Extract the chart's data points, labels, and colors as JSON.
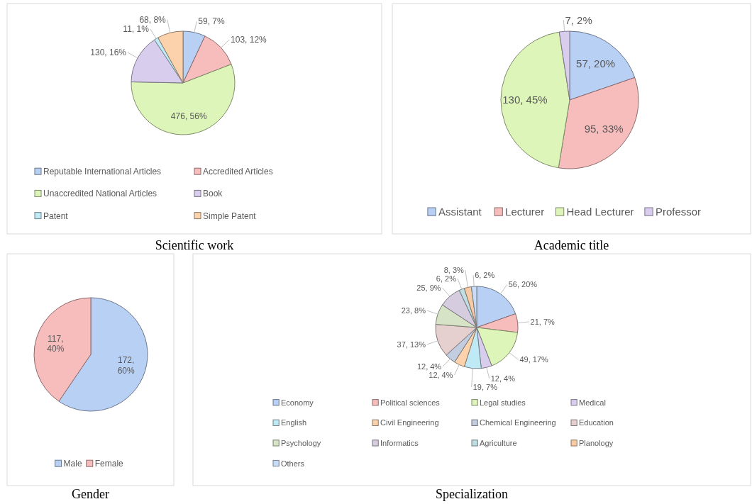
{
  "chart_data": [
    {
      "type": "pie",
      "title": "Scientific work",
      "categories": [
        "Reputable International Articles",
        "Accredited Articles",
        "Unaccredited National Articles",
        "Book",
        "Patent",
        "Simple Patent"
      ],
      "values": [
        59,
        103,
        476,
        130,
        11,
        68
      ],
      "colors": [
        "#b9d0f5",
        "#f7bcbc",
        "#ddf5b8",
        "#d9cdee",
        "#bfe9f5",
        "#fcd2ad"
      ],
      "value_labels": [
        "59, 7%",
        "103, 12%",
        "476, 56%",
        "130, 16%",
        "11, 1%",
        "68, 8%"
      ],
      "legend": "bottom"
    },
    {
      "type": "pie",
      "title": "Academic title",
      "categories": [
        "Assistant",
        "Lecturer",
        "Head Lecturer",
        "Professor"
      ],
      "values": [
        57,
        95,
        130,
        7
      ],
      "colors": [
        "#b9d0f5",
        "#f7bcbc",
        "#ddf5b8",
        "#d9cdee"
      ],
      "value_labels": [
        "57, 20%",
        "95, 33%",
        "130, 45%",
        "7, 2%"
      ],
      "legend": "bottom"
    },
    {
      "type": "pie",
      "title": "Gender",
      "categories": [
        "Male",
        "Female"
      ],
      "values": [
        172,
        117
      ],
      "colors": [
        "#b9d0f5",
        "#f7bcbc"
      ],
      "value_labels": [
        "172, 60%",
        "117, 40%"
      ],
      "legend": "bottom"
    },
    {
      "type": "pie",
      "title": "Specialization",
      "categories": [
        "Economy",
        "Political sciences",
        "Legal studies",
        "Medical",
        "English",
        "Civil Engineering",
        "Chemical Engineering",
        "Education",
        "Psychology",
        "Informatics",
        "Agriculture",
        "Planology",
        "Others"
      ],
      "values": [
        56,
        21,
        49,
        12,
        19,
        12,
        12,
        37,
        23,
        25,
        6,
        8,
        6
      ],
      "colors": [
        "#b9d0f5",
        "#f7bcbc",
        "#ddf5b8",
        "#d9cdee",
        "#bfe9f5",
        "#fcd2ad",
        "#c3cde0",
        "#e6cfcf",
        "#d6e3c6",
        "#d6cce0",
        "#bfdde2",
        "#f7cba6",
        "#c8dcf7"
      ],
      "value_labels": [
        "56, 20%",
        "21, 7%",
        "49, 17%",
        "12, 4%",
        "19, 7%",
        "12, 4%",
        "12, 4%",
        "37, 13%",
        "23, 8%",
        "25, 9%",
        "6, 2%",
        "8, 3%",
        "6, 2%"
      ],
      "legend": "bottom"
    }
  ]
}
